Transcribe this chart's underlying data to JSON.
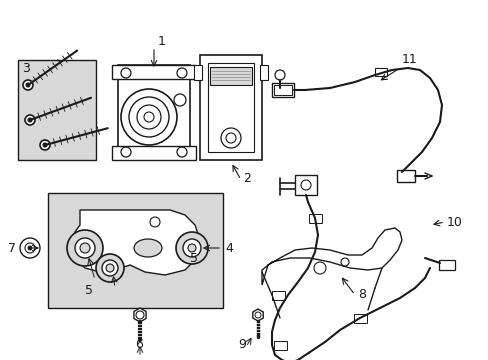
{
  "background_color": "#ffffff",
  "line_color": "#1a1a1a",
  "fig_width": 4.89,
  "fig_height": 3.6,
  "dpi": 100,
  "gray_fill": "#d8d8d8",
  "light_gray": "#e8e8e8"
}
